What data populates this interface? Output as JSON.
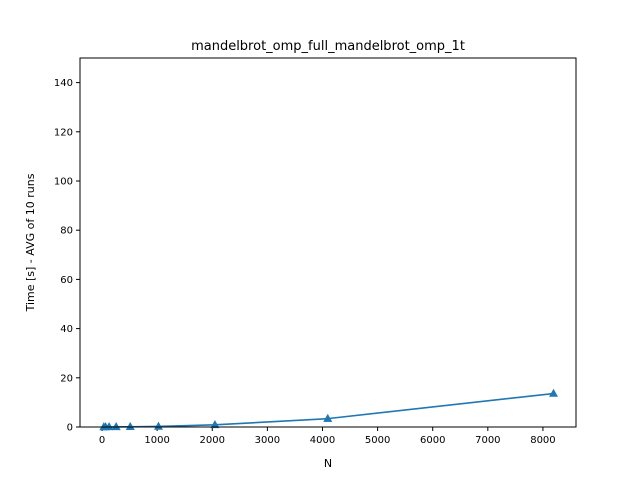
{
  "chart_data": {
    "type": "line",
    "title": "mandelbrot_omp_full_mandelbrot_omp_1t",
    "xlabel": "N",
    "ylabel": "Time [s] - AVG of 10 runs",
    "xlim": [
      -400,
      8600
    ],
    "ylim": [
      0,
      150
    ],
    "xticks": [
      0,
      1000,
      2000,
      3000,
      4000,
      5000,
      6000,
      7000,
      8000
    ],
    "yticks": [
      0,
      20,
      40,
      60,
      80,
      100,
      120,
      140
    ],
    "grid": false,
    "legend": "none",
    "series": [
      {
        "color": "#1f77b4",
        "marker": "triangle-up",
        "x": [
          32,
          64,
          128,
          256,
          512,
          1024,
          2048,
          4096,
          8192
        ],
        "y": [
          0.01,
          0.02,
          0.04,
          0.06,
          0.1,
          0.22,
          0.87,
          3.4,
          13.6
        ]
      }
    ]
  }
}
